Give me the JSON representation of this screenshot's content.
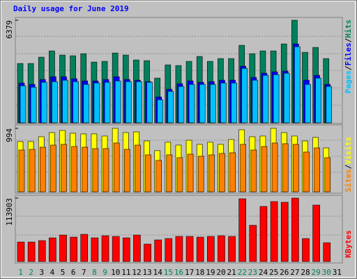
{
  "chart_data": [
    {
      "type": "bar",
      "title": "Daily usage for June 2019",
      "ylim": [
        0,
        6379
      ],
      "yticks": [
        6379
      ],
      "legend_separator": "/",
      "series": [
        {
          "name": "Hits",
          "color": "#00805c",
          "values": [
            3688,
            3688,
            4079,
            4469,
            4209,
            4166,
            4296,
            3775,
            3818,
            4339,
            4209,
            3905,
            3862,
            2777,
            3601,
            3558,
            3818,
            4122,
            3818,
            3992,
            3992,
            4816,
            4296,
            4469,
            4469,
            4903,
            6379,
            4382,
            4686,
            3992,
            null
          ]
        },
        {
          "name": "Files",
          "color": "#0000ff",
          "values": [
            2473,
            2387,
            2690,
            2864,
            2864,
            2734,
            2603,
            2603,
            2690,
            2864,
            2690,
            2647,
            2560,
            1605,
            2083,
            2430,
            2603,
            2517,
            2560,
            2647,
            2647,
            3515,
            2820,
            3081,
            3168,
            3211,
            4903,
            2647,
            2950,
            2387,
            null
          ]
        },
        {
          "name": "Pages",
          "color": "#00c0ff",
          "values": [
            2300,
            2213,
            2517,
            2560,
            2647,
            2560,
            2387,
            2473,
            2517,
            2603,
            2560,
            2560,
            2517,
            1432,
            1953,
            2256,
            2387,
            2387,
            2387,
            2473,
            2473,
            3384,
            2647,
            2950,
            2994,
            3081,
            4730,
            2387,
            2777,
            2256,
            null
          ]
        }
      ]
    },
    {
      "type": "bar",
      "ylim": [
        0,
        994
      ],
      "yticks": [
        994
      ],
      "legend_separator": "/",
      "series": [
        {
          "name": "Visits",
          "color": "#ffff00",
          "values": [
            787,
            787,
            863,
            928,
            961,
            918,
            907,
            907,
            874,
            994,
            928,
            939,
            797,
            645,
            776,
            732,
            808,
            743,
            776,
            743,
            819,
            972,
            863,
            874,
            994,
            928,
            874,
            797,
            852,
            688,
            null
          ]
        },
        {
          "name": "Sites",
          "color": "#ff8000",
          "values": [
            655,
            666,
            699,
            732,
            743,
            710,
            699,
            677,
            677,
            765,
            666,
            732,
            579,
            492,
            579,
            535,
            590,
            557,
            579,
            601,
            612,
            743,
            655,
            710,
            765,
            754,
            743,
            623,
            688,
            535,
            null
          ]
        }
      ]
    },
    {
      "type": "bar",
      "ylim": [
        0,
        113903
      ],
      "yticks": [
        113903
      ],
      "categories": [
        "1",
        "2",
        "3",
        "4",
        "5",
        "6",
        "7",
        "8",
        "9",
        "10",
        "11",
        "12",
        "13",
        "14",
        "15",
        "16",
        "17",
        "18",
        "19",
        "20",
        "21",
        "22",
        "23",
        "24",
        "25",
        "26",
        "27",
        "28",
        "29",
        "30",
        "31"
      ],
      "category_colors": [
        "#00805c",
        "#00805c",
        "#000000",
        "#000000",
        "#000000",
        "#000000",
        "#000000",
        "#00805c",
        "#00805c",
        "#000000",
        "#000000",
        "#000000",
        "#000000",
        "#000000",
        "#00805c",
        "#00805c",
        "#000000",
        "#000000",
        "#000000",
        "#000000",
        "#000000",
        "#00805c",
        "#00805c",
        "#000000",
        "#000000",
        "#000000",
        "#000000",
        "#000000",
        "#00805c",
        "#00805c",
        "#000000"
      ],
      "series": [
        {
          "name": "KBytes",
          "color": "#ff0000",
          "values": [
            35048,
            35048,
            37551,
            42558,
            47564,
            43810,
            48816,
            42558,
            46313,
            45061,
            42558,
            47564,
            31292,
            38803,
            41306,
            45061,
            45061,
            43810,
            45061,
            46313,
            45061,
            112653,
            65088,
            98884,
            107646,
            106394,
            113903,
            41306,
            101388,
            33796,
            null
          ]
        }
      ]
    }
  ]
}
